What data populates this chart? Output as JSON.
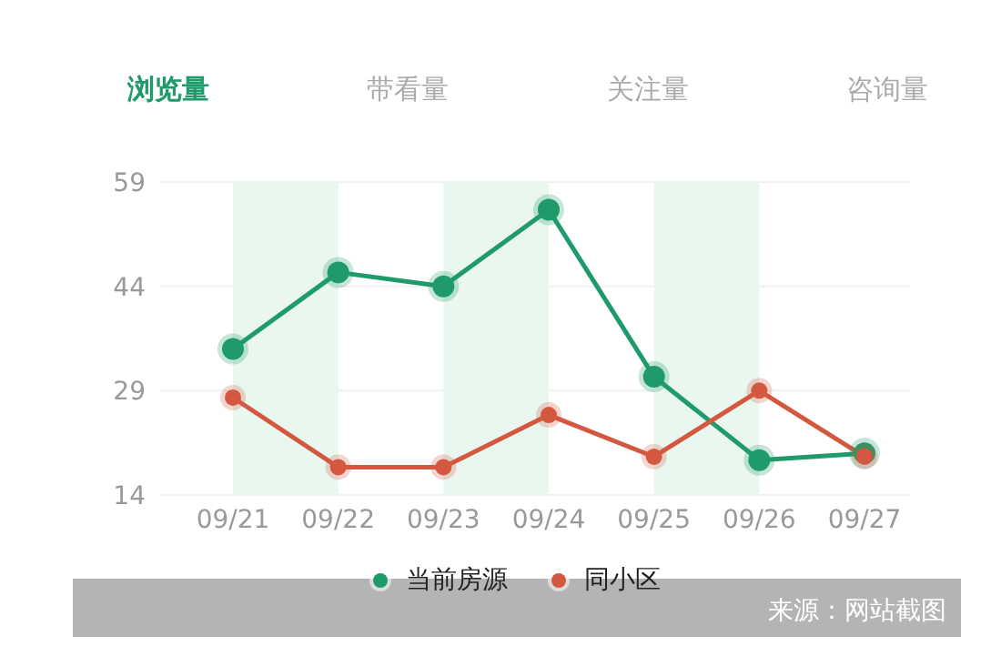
{
  "chart_data": {
    "type": "line",
    "title": "浏览量",
    "annotations": [
      "带看量",
      "关注量",
      "咨询量",
      "来源：网站截图"
    ],
    "categories": [
      "09/21",
      "09/22",
      "09/23",
      "09/24",
      "09/25",
      "09/26",
      "09/27"
    ],
    "series": [
      {
        "name": "当前房源",
        "color": "#1f9a6a",
        "values": [
          35,
          46,
          44,
          55,
          31,
          19,
          20
        ]
      },
      {
        "name": "同小区",
        "color": "#d4583f",
        "values": [
          28,
          18,
          18,
          25.5,
          19.5,
          29,
          19.5
        ]
      }
    ],
    "ylim": [
      14,
      59
    ],
    "yticks": [
      14,
      29,
      44,
      59
    ],
    "grid": "y",
    "marker": "circle",
    "line_style": "solid",
    "legend": "bottom",
    "bands": [
      {
        "axis": "x",
        "from": "09/21",
        "to": "09/22",
        "color": "#e9f7ef"
      },
      {
        "axis": "x",
        "from": "09/23",
        "to": "09/24",
        "color": "#e9f7ef"
      },
      {
        "axis": "x",
        "from": "09/25",
        "to": "09/26",
        "color": "#e9f7ef"
      }
    ]
  }
}
